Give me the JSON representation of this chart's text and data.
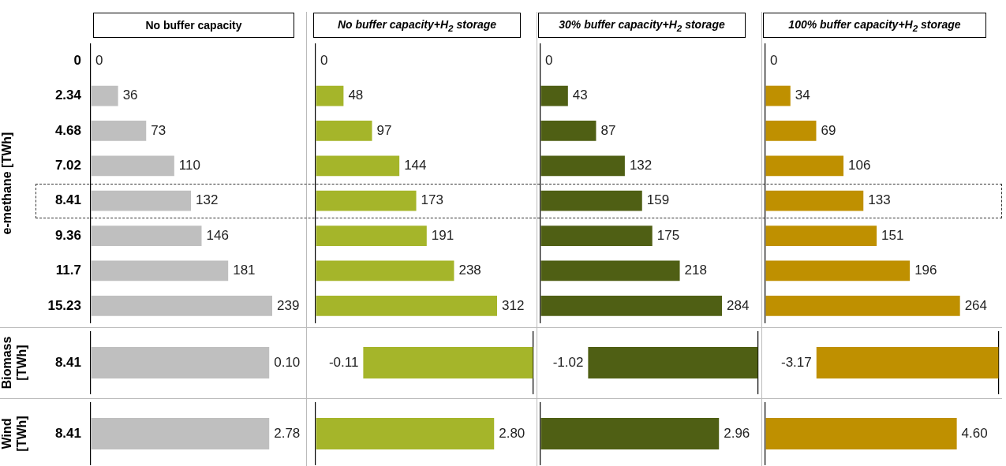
{
  "chart_data": [
    {
      "type": "bar",
      "orientation": "horizontal",
      "title": "No buffer capacity",
      "ylabel": "e-methane [TWh]",
      "categories": [
        "0",
        "2.34",
        "4.68",
        "7.02",
        "8.41",
        "9.36",
        "11.7",
        "15.23"
      ],
      "values": [
        0,
        36,
        73,
        110,
        132,
        146,
        181,
        239
      ],
      "color": "#bfbfbf",
      "data_labels": true,
      "tick_labels": "y",
      "grid": false,
      "legend": false
    },
    {
      "type": "bar",
      "orientation": "horizontal",
      "title": "No buffer capacity+H$_{2}$ storage",
      "categories": [
        "0",
        "2.34",
        "4.68",
        "7.02",
        "8.41",
        "9.36",
        "11.7",
        "15.23"
      ],
      "values": [
        0,
        48,
        97,
        144,
        173,
        191,
        238,
        312
      ],
      "color": "#a5b52a",
      "data_labels": true,
      "tick_labels": false,
      "grid": false,
      "legend": false
    },
    {
      "type": "bar",
      "orientation": "horizontal",
      "title": "30% buffer capacity+H$_{2}$ storage",
      "categories": [
        "0",
        "2.34",
        "4.68",
        "7.02",
        "8.41",
        "9.36",
        "11.7",
        "15.23"
      ],
      "values": [
        0,
        43,
        87,
        132,
        159,
        175,
        218,
        284
      ],
      "color": "#4f5f14",
      "data_labels": true,
      "tick_labels": false,
      "grid": false,
      "legend": false
    },
    {
      "type": "bar",
      "orientation": "horizontal",
      "title": "100% buffer capacity+H$_{2}$ storage",
      "categories": [
        "0",
        "2.34",
        "4.68",
        "7.02",
        "8.41",
        "9.36",
        "11.7",
        "15.23"
      ],
      "values": [
        0,
        34,
        69,
        106,
        133,
        151,
        196,
        264
      ],
      "color": "#bf9000",
      "data_labels": true,
      "tick_labels": false,
      "grid": false,
      "legend": false
    },
    {
      "type": "bar",
      "orientation": "horizontal",
      "ylabel": "Biomass [TWh]",
      "categories": [
        "8.41"
      ],
      "values": [
        0.1
      ],
      "value_labels": [
        "0.10"
      ],
      "color": "#bfbfbf",
      "tick_labels": "y",
      "grid": false,
      "legend": false
    },
    {
      "type": "bar",
      "orientation": "horizontal",
      "categories": [
        "8.41"
      ],
      "values": [
        -0.11
      ],
      "value_labels": [
        "-0.11"
      ],
      "color": "#a5b52a",
      "tick_labels": false,
      "grid": false,
      "legend": false
    },
    {
      "type": "bar",
      "orientation": "horizontal",
      "categories": [
        "8.41"
      ],
      "values": [
        -1.02
      ],
      "value_labels": [
        "-1.02"
      ],
      "color": "#4f5f14",
      "tick_labels": false,
      "grid": false,
      "legend": false
    },
    {
      "type": "bar",
      "orientation": "horizontal",
      "categories": [
        "8.41"
      ],
      "values": [
        -3.17
      ],
      "value_labels": [
        "-3.17"
      ],
      "color": "#bf9000",
      "tick_labels": false,
      "grid": false,
      "legend": false
    },
    {
      "type": "bar",
      "orientation": "horizontal",
      "ylabel": "Wind [TWh]",
      "categories": [
        "8.41"
      ],
      "values": [
        2.78
      ],
      "value_labels": [
        "2.78"
      ],
      "color": "#bfbfbf",
      "tick_labels": "y",
      "grid": false,
      "legend": false
    },
    {
      "type": "bar",
      "orientation": "horizontal",
      "categories": [
        "8.41"
      ],
      "values": [
        2.8
      ],
      "value_labels": [
        "2.80"
      ],
      "color": "#a5b52a",
      "tick_labels": false,
      "grid": false,
      "legend": false
    },
    {
      "type": "bar",
      "orientation": "horizontal",
      "categories": [
        "8.41"
      ],
      "values": [
        2.96
      ],
      "value_labels": [
        "2.96"
      ],
      "color": "#4f5f14",
      "tick_labels": false,
      "grid": false,
      "legend": false
    },
    {
      "type": "bar",
      "orientation": "horizontal",
      "categories": [
        "8.41"
      ],
      "values": [
        4.6
      ],
      "value_labels": [
        "4.60"
      ],
      "color": "#bf9000",
      "tick_labels": false,
      "grid": false,
      "legend": false
    }
  ]
}
